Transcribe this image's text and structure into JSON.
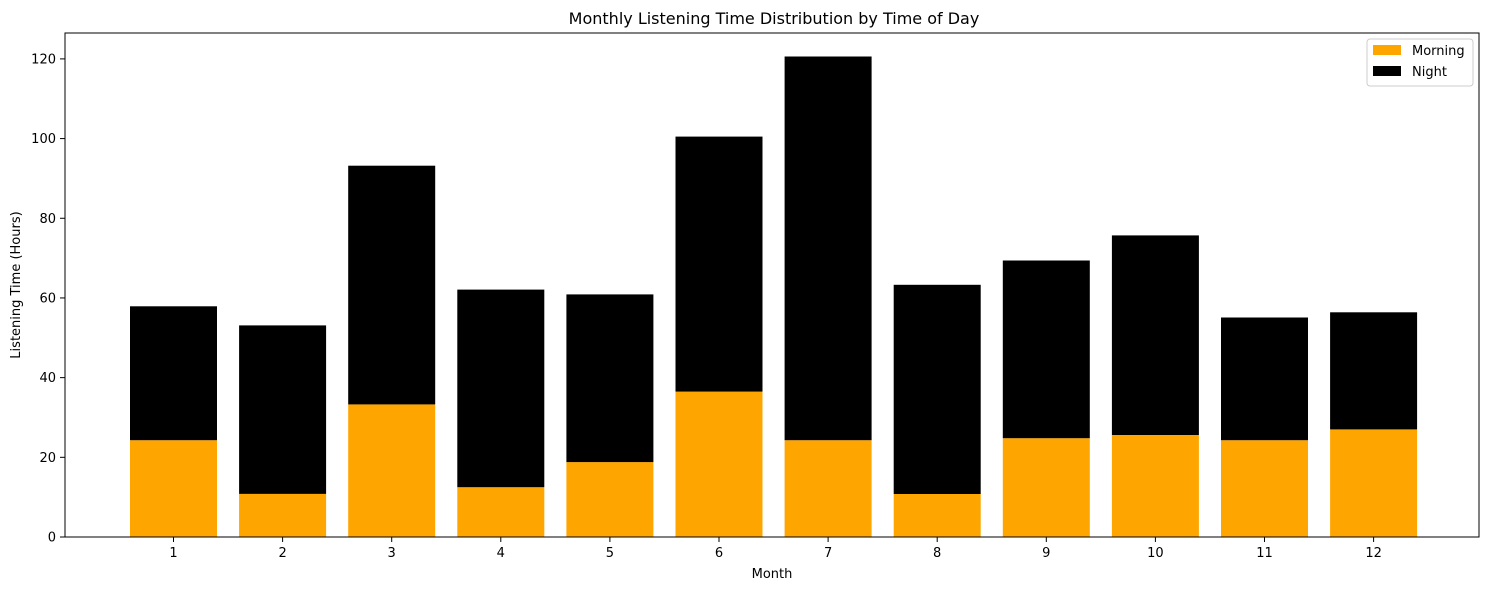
{
  "chart_data": {
    "type": "bar",
    "stacked": true,
    "title": "Monthly Listening Time Distribution by Time of Day",
    "xlabel": "Month",
    "ylabel": "Listening Time (Hours)",
    "categories": [
      "1",
      "2",
      "3",
      "4",
      "5",
      "6",
      "7",
      "8",
      "9",
      "10",
      "11",
      "12"
    ],
    "yticks": [
      0,
      20,
      40,
      60,
      80,
      100,
      120
    ],
    "ylim": [
      0,
      126.5
    ],
    "grid": false,
    "legend_position": "top-right",
    "series": [
      {
        "name": "Morning",
        "color": "#FFA500",
        "values": [
          24.3,
          10.8,
          33.3,
          12.5,
          18.8,
          36.5,
          24.3,
          10.8,
          24.8,
          25.6,
          24.3,
          27.0
        ]
      },
      {
        "name": "Night",
        "color": "#000000",
        "values": [
          33.6,
          42.3,
          59.9,
          49.6,
          42.1,
          64.0,
          96.3,
          52.5,
          44.6,
          50.1,
          30.8,
          29.4
        ]
      }
    ]
  }
}
